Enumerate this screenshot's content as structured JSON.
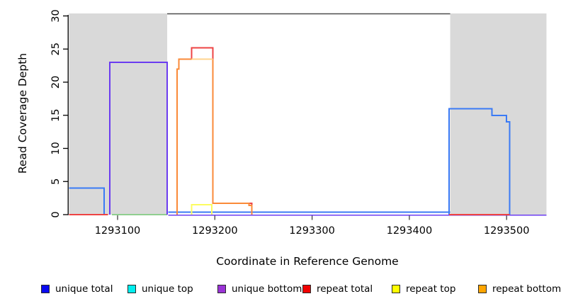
{
  "chart_data": {
    "type": "line",
    "subtype": "step-coverage",
    "title": "",
    "xlabel": "Coordinate in Reference Genome",
    "ylabel": "Read Coverage Depth",
    "xlim": [
      1293050,
      1293541
    ],
    "ylim": [
      0,
      30
    ],
    "grid": false,
    "legend_position": "bottom",
    "x_ticks": [
      "1293100",
      "1293200",
      "1293300",
      "1293400",
      "1293500"
    ],
    "x_tick_values": [
      1293100,
      1293200,
      1293300,
      1293400,
      1293500
    ],
    "y_ticks": [
      "0",
      "5",
      "10",
      "15",
      "20",
      "25",
      "30"
    ],
    "y_tick_values": [
      0,
      5,
      10,
      15,
      20,
      25,
      30
    ],
    "shaded_regions": [
      {
        "x0": 1293050,
        "x1": 1293151,
        "color": "#d9d9d9"
      },
      {
        "x0": 1293442,
        "x1": 1293541,
        "color": "#d9d9d9"
      }
    ],
    "series": [
      {
        "name": "unique total",
        "color": "#3a7af5",
        "legend_color": "#0a0af0",
        "paths": [
          {
            "pts": [
              [
                1293050,
                4
              ],
              [
                1293086,
                4
              ],
              [
                1293086,
                0
              ]
            ]
          },
          {
            "pts": [
              [
                1293152,
                0
              ],
              [
                1293442,
                0
              ]
            ],
            "dy": -3.5,
            "w": 1.6
          },
          {
            "pts": [
              [
                1293441,
                0
              ],
              [
                1293441,
                16
              ],
              [
                1293485,
                16
              ],
              [
                1293485,
                15
              ],
              [
                1293500,
                15
              ],
              [
                1293500,
                14
              ],
              [
                1293503,
                14
              ],
              [
                1293503,
                0
              ]
            ]
          }
        ]
      },
      {
        "name": "unique top",
        "color": "#00e0e0",
        "legend_color": "#00eeee",
        "paths": []
      },
      {
        "name": "unique bottom",
        "color": "#6b3cf0",
        "legend_color": "#9a33d6",
        "paths": [
          {
            "pts": [
              [
                1293152,
                0
              ],
              [
                1293541,
                0
              ]
            ],
            "dy": 0.8,
            "w": 1.4
          },
          {
            "pts": [
              [
                1293092,
                0
              ],
              [
                1293092,
                23
              ],
              [
                1293151,
                23
              ],
              [
                1293151,
                0
              ]
            ]
          }
        ]
      },
      {
        "name": "repeat total",
        "color": "#ee4343",
        "legend_color": "#f00000",
        "paths": [
          {
            "pts": [
              [
                1293050,
                0
              ],
              [
                1293090,
                0
              ]
            ],
            "w": 1.6
          },
          {
            "pts": [
              [
                1293161,
                0
              ],
              [
                1293161,
                22
              ],
              [
                1293163,
                22
              ],
              [
                1293163,
                23.5
              ],
              [
                1293176,
                23.5
              ],
              [
                1293176,
                25.2
              ],
              [
                1293198,
                25.2
              ],
              [
                1293198,
                1.7
              ],
              [
                1293238,
                1.7
              ],
              [
                1293238,
                0
              ]
            ]
          },
          {
            "pts": [
              [
                1293441,
                0
              ],
              [
                1293503,
                0
              ]
            ],
            "w": 1.6
          }
        ]
      },
      {
        "name": "repeat top",
        "color": "#fcfc60",
        "legend_color": "#ffff00",
        "paths": [
          {
            "pts": [
              [
                1293176,
                0
              ],
              [
                1293176,
                1.5
              ],
              [
                1293197,
                1.5
              ],
              [
                1293197,
                0
              ]
            ]
          }
        ]
      },
      {
        "name": "repeat bottom",
        "color": "#fa8a38",
        "legend_color": "#ffa500",
        "paths": [
          {
            "pts": [
              [
                1293161,
                0
              ],
              [
                1293161,
                22
              ],
              [
                1293163,
                22
              ],
              [
                1293163,
                23.5
              ],
              [
                1293176,
                23.5
              ]
            ]
          },
          {
            "pts": [
              [
                1293198,
                23.5
              ],
              [
                1293198,
                1.7
              ],
              [
                1293235,
                1.7
              ],
              [
                1293235,
                1.4
              ],
              [
                1293238,
                1.4
              ],
              [
                1293238,
                0
              ]
            ]
          }
        ]
      }
    ],
    "overlap_lines": [
      {
        "pts": [
          [
            1293094,
            0
          ],
          [
            1293151,
            0
          ]
        ],
        "color": "#8fce8f",
        "w": 1.6
      },
      {
        "pts": [
          [
            1293176,
            23.5
          ],
          [
            1293198,
            23.5
          ]
        ],
        "color": "#ffd48f",
        "w": 2
      }
    ]
  },
  "legend": {
    "items": [
      {
        "label": "unique total"
      },
      {
        "label": "unique top"
      },
      {
        "label": "unique bottom"
      },
      {
        "label": "repeat total"
      },
      {
        "label": "repeat top"
      },
      {
        "label": "repeat bottom"
      }
    ]
  }
}
